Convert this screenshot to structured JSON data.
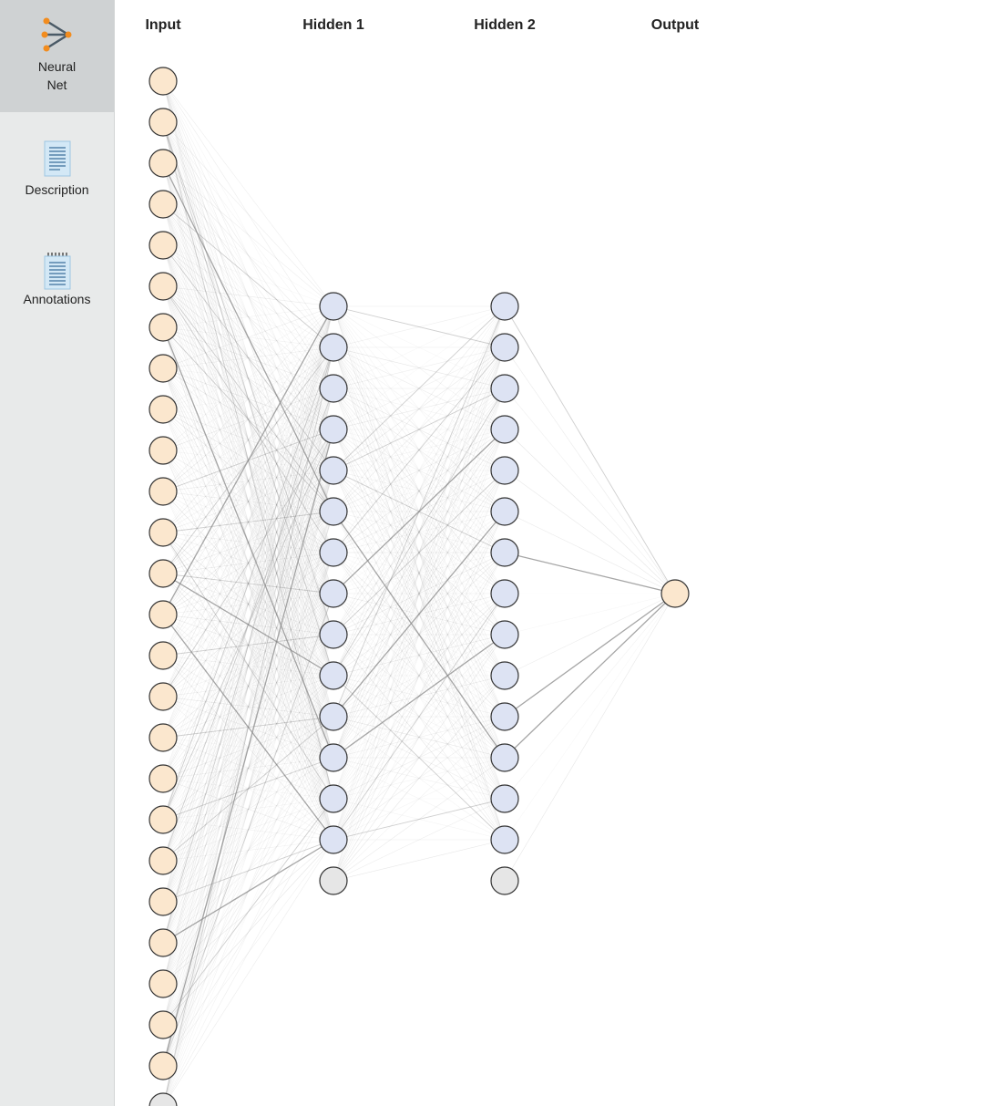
{
  "sidebar": {
    "items": [
      {
        "label_line1": "Neural",
        "label_line2": "Net",
        "icon": "neural-net-icon",
        "active": true
      },
      {
        "label": "Description",
        "icon": "description-document-icon",
        "active": false
      },
      {
        "label": "Annotations",
        "icon": "annotations-notepad-icon",
        "active": false
      }
    ]
  },
  "network": {
    "layers": [
      {
        "title": "Input",
        "nodes": 25,
        "has_bias": true
      },
      {
        "title": "Hidden 1",
        "nodes": 14,
        "has_bias": true
      },
      {
        "title": "Hidden 2",
        "nodes": 14,
        "has_bias": true
      },
      {
        "title": "Output",
        "nodes": 1,
        "has_bias": false
      }
    ],
    "colors": {
      "input_node": "#fbe7ce",
      "hidden_node": "#dde3f3",
      "output_node": "#fbe7ce",
      "bias_node": "#e6e6e6",
      "node_stroke": "#333333",
      "edge": "#888888"
    }
  }
}
